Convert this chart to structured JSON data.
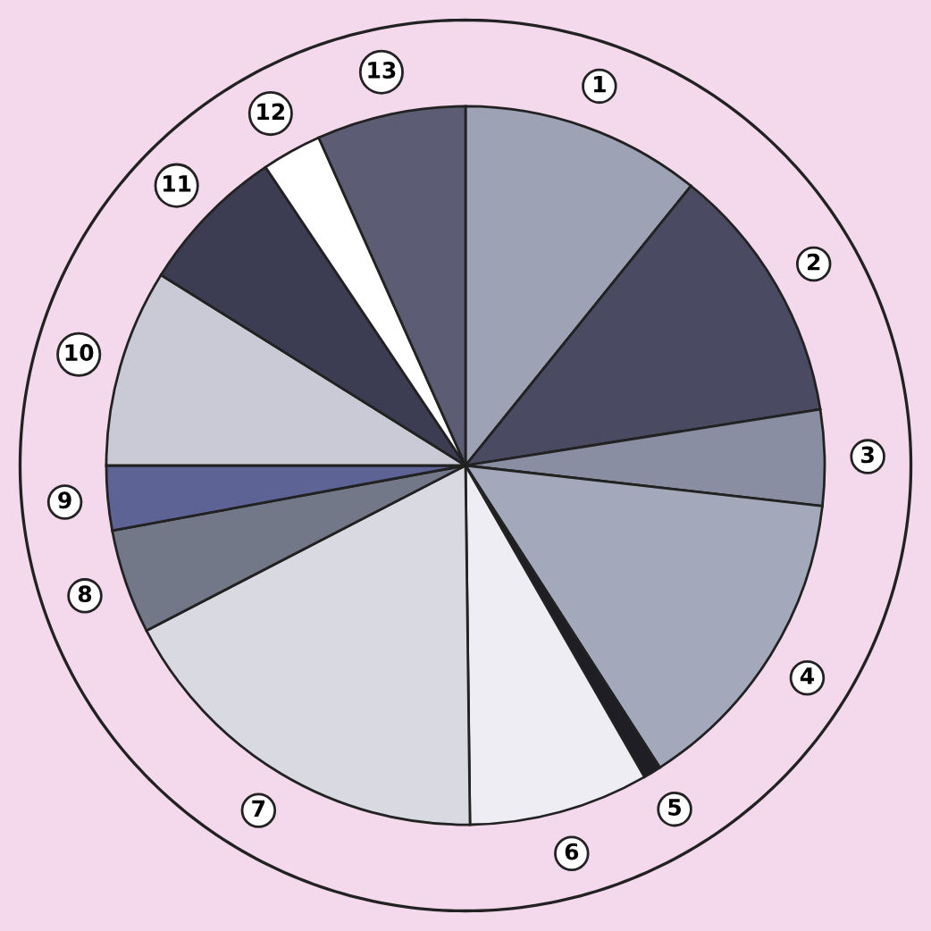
{
  "chart_data": {
    "type": "pie",
    "categories": [
      "1",
      "2",
      "3",
      "4",
      "5",
      "6",
      "7",
      "8",
      "9",
      "10",
      "11",
      "12",
      "13"
    ],
    "values": [
      10.8,
      11.7,
      4.3,
      14.1,
      0.8,
      8.1,
      17.6,
      4.7,
      2.9,
      8.9,
      6.7,
      2.7,
      6.7
    ],
    "colors": [
      "#9da2b4",
      "#4a4a62",
      "#8a8ea2",
      "#a3a8bb",
      "#1e1e24",
      "#eeedf4",
      "#d9d9e2",
      "#737889",
      "#5d6394",
      "#cacad6",
      "#3c3c52",
      "#ffffff",
      "#5c5c74"
    ],
    "legend": false
  }
}
